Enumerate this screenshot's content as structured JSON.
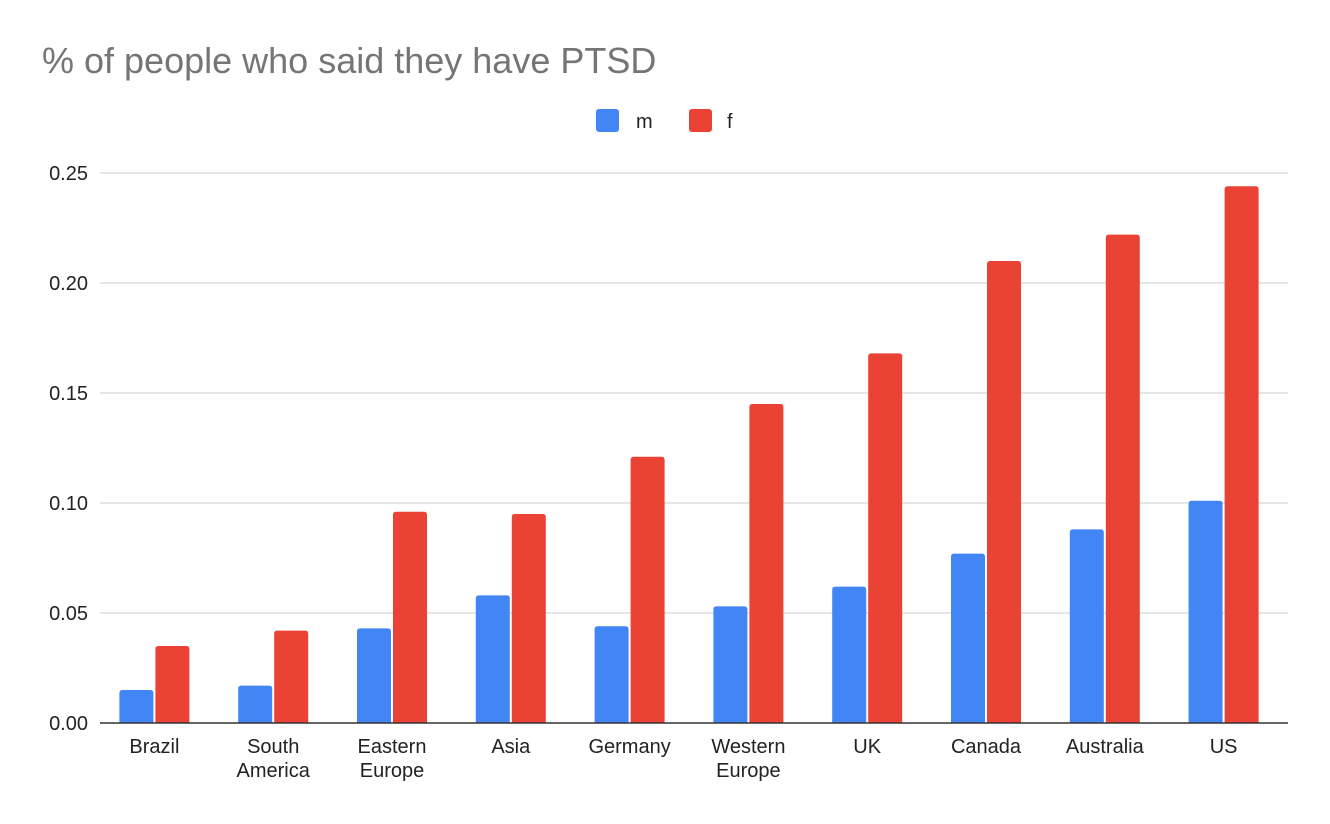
{
  "chart_data": {
    "type": "bar",
    "title": "% of people who said they have PTSD",
    "xlabel": "",
    "ylabel": "",
    "categories": [
      [
        "Brazil"
      ],
      [
        "South",
        "America"
      ],
      [
        "Eastern",
        "Europe"
      ],
      [
        "Asia"
      ],
      [
        "Germany"
      ],
      [
        "Western",
        "Europe"
      ],
      [
        "UK"
      ],
      [
        "Canada"
      ],
      [
        "Australia"
      ],
      [
        "US"
      ]
    ],
    "series": [
      {
        "name": "m",
        "color": "#4285f4",
        "values": [
          0.015,
          0.017,
          0.043,
          0.058,
          0.044,
          0.053,
          0.062,
          0.077,
          0.088,
          0.101
        ]
      },
      {
        "name": "f",
        "color": "#ea4335",
        "values": [
          0.035,
          0.042,
          0.096,
          0.095,
          0.121,
          0.145,
          0.168,
          0.21,
          0.222,
          0.244
        ]
      }
    ],
    "ylim": [
      0,
      0.25
    ],
    "yticks": [
      "0.00",
      "0.05",
      "0.10",
      "0.15",
      "0.20",
      "0.25"
    ],
    "grid": true,
    "legend_position": "top-center"
  }
}
